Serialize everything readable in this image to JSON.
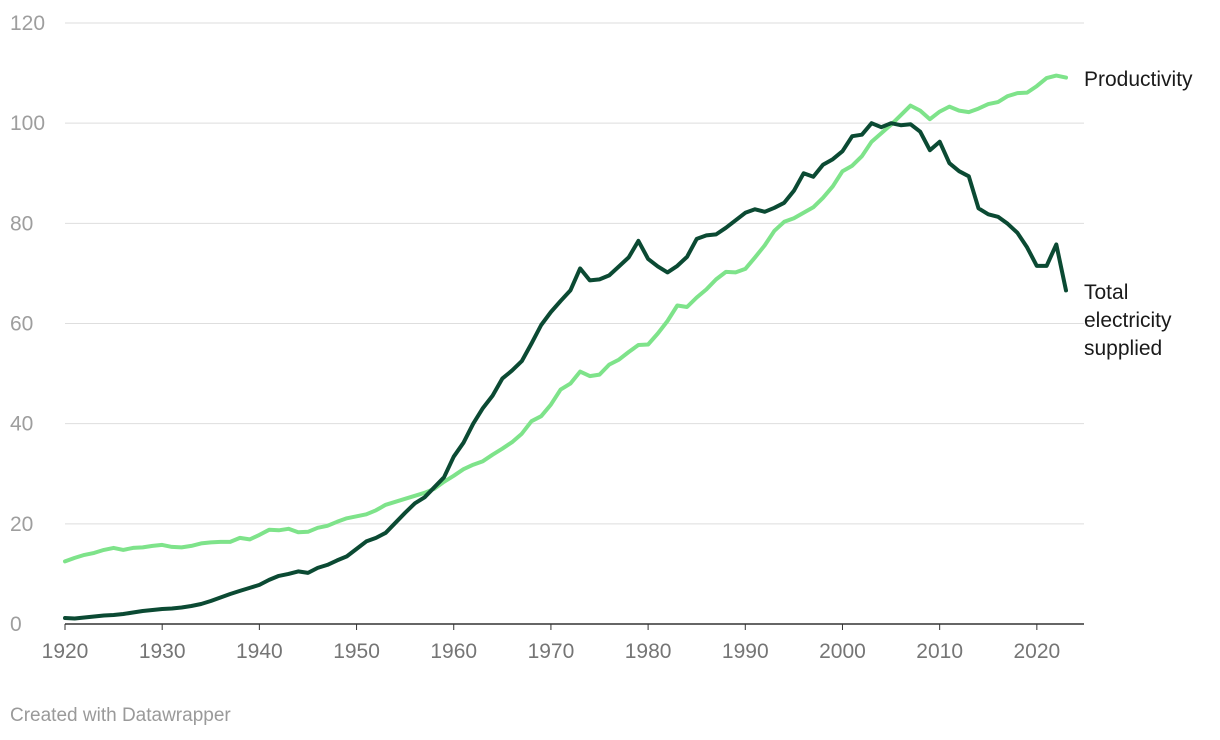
{
  "footer": "Created with Datawrapper",
  "chart_data": {
    "type": "line",
    "xlim": [
      1920,
      2023
    ],
    "ylim": [
      0,
      120
    ],
    "y_ticks": [
      0,
      20,
      40,
      60,
      80,
      100,
      120
    ],
    "x_ticks": [
      1920,
      1930,
      1940,
      1950,
      1960,
      1970,
      1980,
      1990,
      2000,
      2010,
      2020
    ],
    "grid": true,
    "legend": "direct labels at line ends (right)",
    "series": [
      {
        "name": "Productivity",
        "label_lines": [
          "Productivity"
        ],
        "color": "#7ee38a",
        "points": [
          [
            1920,
            12.5
          ],
          [
            1921,
            13.2
          ],
          [
            1922,
            13.8
          ],
          [
            1923,
            14.2
          ],
          [
            1924,
            14.8
          ],
          [
            1925,
            15.2
          ],
          [
            1926,
            14.8
          ],
          [
            1927,
            15.2
          ],
          [
            1928,
            15.3
          ],
          [
            1929,
            15.6
          ],
          [
            1930,
            15.8
          ],
          [
            1931,
            15.4
          ],
          [
            1932,
            15.3
          ],
          [
            1933,
            15.6
          ],
          [
            1934,
            16.1
          ],
          [
            1935,
            16.3
          ],
          [
            1936,
            16.4
          ],
          [
            1937,
            16.4
          ],
          [
            1938,
            17.2
          ],
          [
            1939,
            16.9
          ],
          [
            1940,
            17.8
          ],
          [
            1941,
            18.8
          ],
          [
            1942,
            18.7
          ],
          [
            1943,
            19.0
          ],
          [
            1944,
            18.3
          ],
          [
            1945,
            18.4
          ],
          [
            1946,
            19.2
          ],
          [
            1947,
            19.6
          ],
          [
            1948,
            20.4
          ],
          [
            1949,
            21.1
          ],
          [
            1950,
            21.5
          ],
          [
            1951,
            21.9
          ],
          [
            1952,
            22.7
          ],
          [
            1953,
            23.8
          ],
          [
            1954,
            24.4
          ],
          [
            1955,
            25.0
          ],
          [
            1956,
            25.6
          ],
          [
            1957,
            26.2
          ],
          [
            1958,
            27.0
          ],
          [
            1959,
            28.4
          ],
          [
            1960,
            29.6
          ],
          [
            1961,
            30.9
          ],
          [
            1962,
            31.8
          ],
          [
            1963,
            32.5
          ],
          [
            1964,
            33.8
          ],
          [
            1965,
            35.0
          ],
          [
            1966,
            36.3
          ],
          [
            1967,
            38.0
          ],
          [
            1968,
            40.5
          ],
          [
            1969,
            41.5
          ],
          [
            1970,
            43.8
          ],
          [
            1971,
            46.8
          ],
          [
            1972,
            48.0
          ],
          [
            1973,
            50.4
          ],
          [
            1974,
            49.5
          ],
          [
            1975,
            49.8
          ],
          [
            1976,
            51.8
          ],
          [
            1977,
            52.8
          ],
          [
            1978,
            54.3
          ],
          [
            1979,
            55.7
          ],
          [
            1980,
            55.8
          ],
          [
            1981,
            58.0
          ],
          [
            1982,
            60.5
          ],
          [
            1983,
            63.6
          ],
          [
            1984,
            63.3
          ],
          [
            1985,
            65.2
          ],
          [
            1986,
            66.8
          ],
          [
            1987,
            68.8
          ],
          [
            1988,
            70.3
          ],
          [
            1989,
            70.2
          ],
          [
            1990,
            70.9
          ],
          [
            1991,
            73.2
          ],
          [
            1992,
            75.6
          ],
          [
            1993,
            78.5
          ],
          [
            1994,
            80.3
          ],
          [
            1995,
            81.0
          ],
          [
            1996,
            82.1
          ],
          [
            1997,
            83.2
          ],
          [
            1998,
            85.1
          ],
          [
            1999,
            87.4
          ],
          [
            2000,
            90.4
          ],
          [
            2001,
            91.5
          ],
          [
            2002,
            93.4
          ],
          [
            2003,
            96.3
          ],
          [
            2004,
            98.0
          ],
          [
            2005,
            99.7
          ],
          [
            2006,
            101.6
          ],
          [
            2007,
            103.5
          ],
          [
            2008,
            102.5
          ],
          [
            2009,
            100.8
          ],
          [
            2010,
            102.3
          ],
          [
            2011,
            103.3
          ],
          [
            2012,
            102.5
          ],
          [
            2013,
            102.2
          ],
          [
            2014,
            102.9
          ],
          [
            2015,
            103.8
          ],
          [
            2016,
            104.2
          ],
          [
            2017,
            105.4
          ],
          [
            2018,
            106.0
          ],
          [
            2019,
            106.1
          ],
          [
            2020,
            107.4
          ],
          [
            2021,
            109.0
          ],
          [
            2022,
            109.5
          ],
          [
            2023,
            109.1
          ]
        ]
      },
      {
        "name": "Total electricity supplied",
        "label_lines": [
          "Total",
          "electricity",
          "supplied"
        ],
        "color": "#0b4a33",
        "points": [
          [
            1920,
            1.2
          ],
          [
            1921,
            1.1
          ],
          [
            1922,
            1.3
          ],
          [
            1923,
            1.5
          ],
          [
            1924,
            1.7
          ],
          [
            1925,
            1.8
          ],
          [
            1926,
            2.0
          ],
          [
            1927,
            2.3
          ],
          [
            1928,
            2.6
          ],
          [
            1929,
            2.8
          ],
          [
            1930,
            3.0
          ],
          [
            1931,
            3.1
          ],
          [
            1932,
            3.3
          ],
          [
            1933,
            3.6
          ],
          [
            1934,
            4.0
          ],
          [
            1935,
            4.6
          ],
          [
            1936,
            5.3
          ],
          [
            1937,
            6.0
          ],
          [
            1938,
            6.6
          ],
          [
            1939,
            7.2
          ],
          [
            1940,
            7.8
          ],
          [
            1941,
            8.8
          ],
          [
            1942,
            9.6
          ],
          [
            1943,
            10.0
          ],
          [
            1944,
            10.5
          ],
          [
            1945,
            10.2
          ],
          [
            1946,
            11.2
          ],
          [
            1947,
            11.8
          ],
          [
            1948,
            12.7
          ],
          [
            1949,
            13.5
          ],
          [
            1950,
            15.0
          ],
          [
            1951,
            16.5
          ],
          [
            1952,
            17.2
          ],
          [
            1953,
            18.2
          ],
          [
            1954,
            20.2
          ],
          [
            1955,
            22.2
          ],
          [
            1956,
            24.1
          ],
          [
            1957,
            25.3
          ],
          [
            1958,
            27.3
          ],
          [
            1959,
            29.3
          ],
          [
            1960,
            33.4
          ],
          [
            1961,
            36.2
          ],
          [
            1962,
            40.0
          ],
          [
            1963,
            43.1
          ],
          [
            1964,
            45.6
          ],
          [
            1965,
            49.0
          ],
          [
            1966,
            50.6
          ],
          [
            1967,
            52.5
          ],
          [
            1968,
            56.0
          ],
          [
            1969,
            59.7
          ],
          [
            1970,
            62.3
          ],
          [
            1971,
            64.5
          ],
          [
            1972,
            66.6
          ],
          [
            1973,
            71.0
          ],
          [
            1974,
            68.6
          ],
          [
            1975,
            68.8
          ],
          [
            1976,
            69.6
          ],
          [
            1977,
            71.4
          ],
          [
            1978,
            73.2
          ],
          [
            1979,
            76.5
          ],
          [
            1980,
            72.9
          ],
          [
            1981,
            71.4
          ],
          [
            1982,
            70.2
          ],
          [
            1983,
            71.5
          ],
          [
            1984,
            73.3
          ],
          [
            1985,
            76.9
          ],
          [
            1986,
            77.6
          ],
          [
            1987,
            77.8
          ],
          [
            1988,
            79.1
          ],
          [
            1989,
            80.6
          ],
          [
            1990,
            82.1
          ],
          [
            1991,
            82.8
          ],
          [
            1992,
            82.3
          ],
          [
            1993,
            83.1
          ],
          [
            1994,
            84.1
          ],
          [
            1995,
            86.5
          ],
          [
            1996,
            90.0
          ],
          [
            1997,
            89.3
          ],
          [
            1998,
            91.7
          ],
          [
            1999,
            92.8
          ],
          [
            2000,
            94.4
          ],
          [
            2001,
            97.4
          ],
          [
            2002,
            97.7
          ],
          [
            2003,
            100.0
          ],
          [
            2004,
            99.2
          ],
          [
            2005,
            100.0
          ],
          [
            2006,
            99.6
          ],
          [
            2007,
            99.8
          ],
          [
            2008,
            98.3
          ],
          [
            2009,
            94.6
          ],
          [
            2010,
            96.3
          ],
          [
            2011,
            92.0
          ],
          [
            2012,
            90.4
          ],
          [
            2013,
            89.4
          ],
          [
            2014,
            83.0
          ],
          [
            2015,
            81.8
          ],
          [
            2016,
            81.3
          ],
          [
            2017,
            79.9
          ],
          [
            2018,
            78.1
          ],
          [
            2019,
            75.2
          ],
          [
            2020,
            71.5
          ],
          [
            2021,
            71.5
          ],
          [
            2022,
            75.8
          ],
          [
            2023,
            66.6
          ]
        ]
      }
    ]
  }
}
